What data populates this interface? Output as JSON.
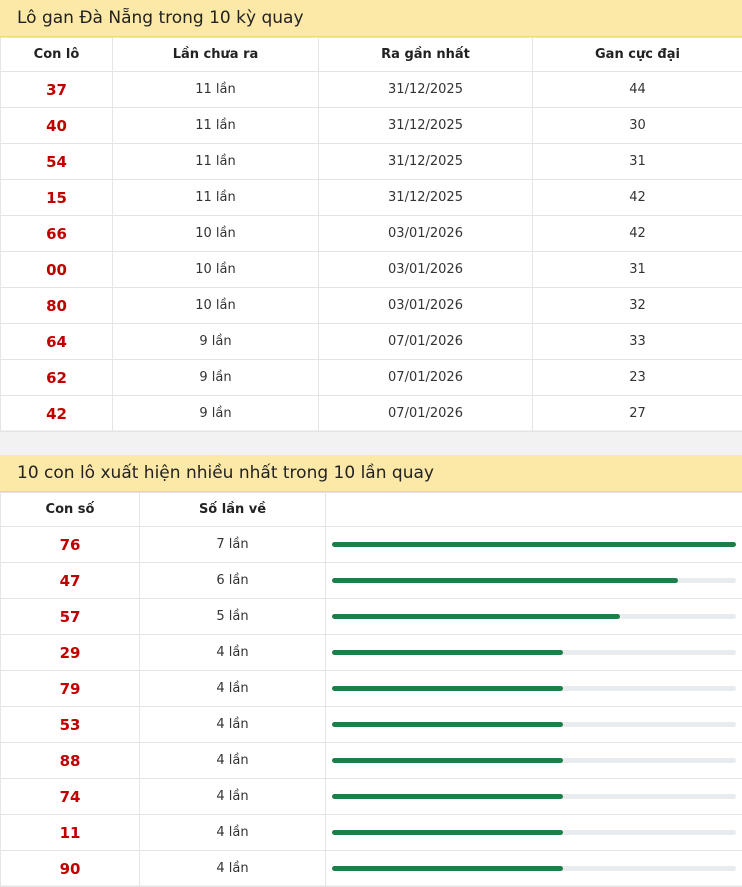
{
  "gan": {
    "title": "Lô gan Đà Nẵng trong 10 kỳ quay",
    "columns": [
      "Con lô",
      "Lần chưa ra",
      "Ra gần nhất",
      "Gan cực đại"
    ],
    "rows": [
      {
        "lo": "37",
        "chua_ra": "11 lần",
        "gan_nhat": "31/12/2025",
        "cuc_dai": "44"
      },
      {
        "lo": "40",
        "chua_ra": "11 lần",
        "gan_nhat": "31/12/2025",
        "cuc_dai": "30"
      },
      {
        "lo": "54",
        "chua_ra": "11 lần",
        "gan_nhat": "31/12/2025",
        "cuc_dai": "31"
      },
      {
        "lo": "15",
        "chua_ra": "11 lần",
        "gan_nhat": "31/12/2025",
        "cuc_dai": "42"
      },
      {
        "lo": "66",
        "chua_ra": "10 lần",
        "gan_nhat": "03/01/2026",
        "cuc_dai": "42"
      },
      {
        "lo": "00",
        "chua_ra": "10 lần",
        "gan_nhat": "03/01/2026",
        "cuc_dai": "31"
      },
      {
        "lo": "80",
        "chua_ra": "10 lần",
        "gan_nhat": "03/01/2026",
        "cuc_dai": "32"
      },
      {
        "lo": "64",
        "chua_ra": "9 lần",
        "gan_nhat": "07/01/2026",
        "cuc_dai": "33"
      },
      {
        "lo": "62",
        "chua_ra": "9 lần",
        "gan_nhat": "07/01/2026",
        "cuc_dai": "23"
      },
      {
        "lo": "42",
        "chua_ra": "9 lần",
        "gan_nhat": "07/01/2026",
        "cuc_dai": "27"
      }
    ]
  },
  "top": {
    "title": "10 con lô xuất hiện nhiều nhất trong 10 lần quay",
    "columns": [
      "Con số",
      "Số lần về",
      ""
    ],
    "rows": [
      {
        "so": "76",
        "lan_ve": "7 lần",
        "ratio": 1.0
      },
      {
        "so": "47",
        "lan_ve": "6 lần",
        "ratio": 0.857
      },
      {
        "so": "57",
        "lan_ve": "5 lần",
        "ratio": 0.714
      },
      {
        "so": "29",
        "lan_ve": "4 lần",
        "ratio": 0.571
      },
      {
        "so": "79",
        "lan_ve": "4 lần",
        "ratio": 0.571
      },
      {
        "so": "53",
        "lan_ve": "4 lần",
        "ratio": 0.571
      },
      {
        "so": "88",
        "lan_ve": "4 lần",
        "ratio": 0.571
      },
      {
        "so": "74",
        "lan_ve": "4 lần",
        "ratio": 0.571
      },
      {
        "so": "11",
        "lan_ve": "4 lần",
        "ratio": 0.571
      },
      {
        "so": "90",
        "lan_ve": "4 lần",
        "ratio": 0.571
      }
    ]
  },
  "colors": {
    "header_bg": "#fde9a7",
    "number": "#c00000",
    "bar": "#1e7e4a",
    "track": "#e9ecef"
  }
}
